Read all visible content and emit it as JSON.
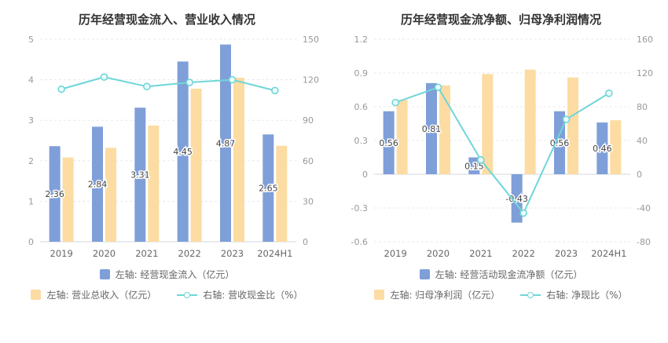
{
  "colors": {
    "bar_blue": "#7f9fd8",
    "bar_yellow": "#fcdca2",
    "line_teal": "#6fd6d8",
    "marker_fill": "#eafbfa",
    "title": "#333333",
    "axis_text": "#999999",
    "cat_text": "#666666",
    "label_text": "#444444",
    "legend_text": "#666666",
    "grid": "#e8e8ee",
    "zero_line": "#d4d7de"
  },
  "chart_data": [
    {
      "type": "bar",
      "title": "历年经营现金流入、营业收入情况",
      "categories": [
        "2019",
        "2020",
        "2021",
        "2022",
        "2023",
        "2024H1"
      ],
      "left_axis": {
        "min": 0,
        "max": 5,
        "ticks": [
          0,
          1,
          2,
          3,
          4,
          5
        ]
      },
      "right_axis": {
        "min": 0,
        "max": 150,
        "ticks": [
          0,
          30,
          60,
          90,
          120,
          150
        ]
      },
      "grid": true,
      "legend_position": "bottom",
      "series": [
        {
          "name": "左轴: 经营现金流入（亿元）",
          "type": "bar",
          "axis": "left",
          "color_key": "bar_blue",
          "values": [
            2.36,
            2.84,
            3.31,
            4.45,
            4.87,
            2.65
          ],
          "labels": [
            "2.36",
            "2.84",
            "3.31",
            "4.45",
            "4.87",
            "2.65"
          ]
        },
        {
          "name": "左轴: 营业总收入（亿元）",
          "type": "bar",
          "axis": "left",
          "color_key": "bar_yellow",
          "values": [
            2.08,
            2.32,
            2.87,
            3.78,
            4.05,
            2.37
          ]
        },
        {
          "name": "右轴: 营收现金比（%）",
          "type": "line",
          "axis": "right",
          "color_key": "line_teal",
          "values": [
            113,
            122,
            115,
            118,
            120,
            112
          ]
        }
      ]
    },
    {
      "type": "bar",
      "title": "历年经营现金流净额、归母净利润情况",
      "categories": [
        "2019",
        "2020",
        "2021",
        "2022",
        "2023",
        "2024H1"
      ],
      "left_axis": {
        "min": -0.6,
        "max": 1.2,
        "ticks": [
          -0.6,
          -0.3,
          0,
          0.3,
          0.6,
          0.9,
          1.2
        ]
      },
      "right_axis": {
        "min": -80,
        "max": 160,
        "ticks": [
          -80,
          -40,
          0,
          40,
          80,
          120,
          160
        ]
      },
      "grid": true,
      "legend_position": "bottom",
      "series": [
        {
          "name": "左轴: 经营活动现金流净额（亿元）",
          "type": "bar",
          "axis": "left",
          "color_key": "bar_blue",
          "values": [
            0.56,
            0.81,
            0.15,
            -0.43,
            0.56,
            0.46
          ],
          "labels": [
            "0.56",
            "0.81",
            "0.15",
            "-0.43",
            "0.56",
            "0.46"
          ]
        },
        {
          "name": "左轴: 归母净利润（亿元）",
          "type": "bar",
          "axis": "left",
          "color_key": "bar_yellow",
          "values": [
            0.66,
            0.79,
            0.89,
            0.93,
            0.86,
            0.48
          ]
        },
        {
          "name": "右轴: 净现比（%）",
          "type": "line",
          "axis": "right",
          "color_key": "line_teal",
          "values": [
            85,
            103,
            17,
            -46,
            65,
            96
          ]
        }
      ]
    }
  ]
}
